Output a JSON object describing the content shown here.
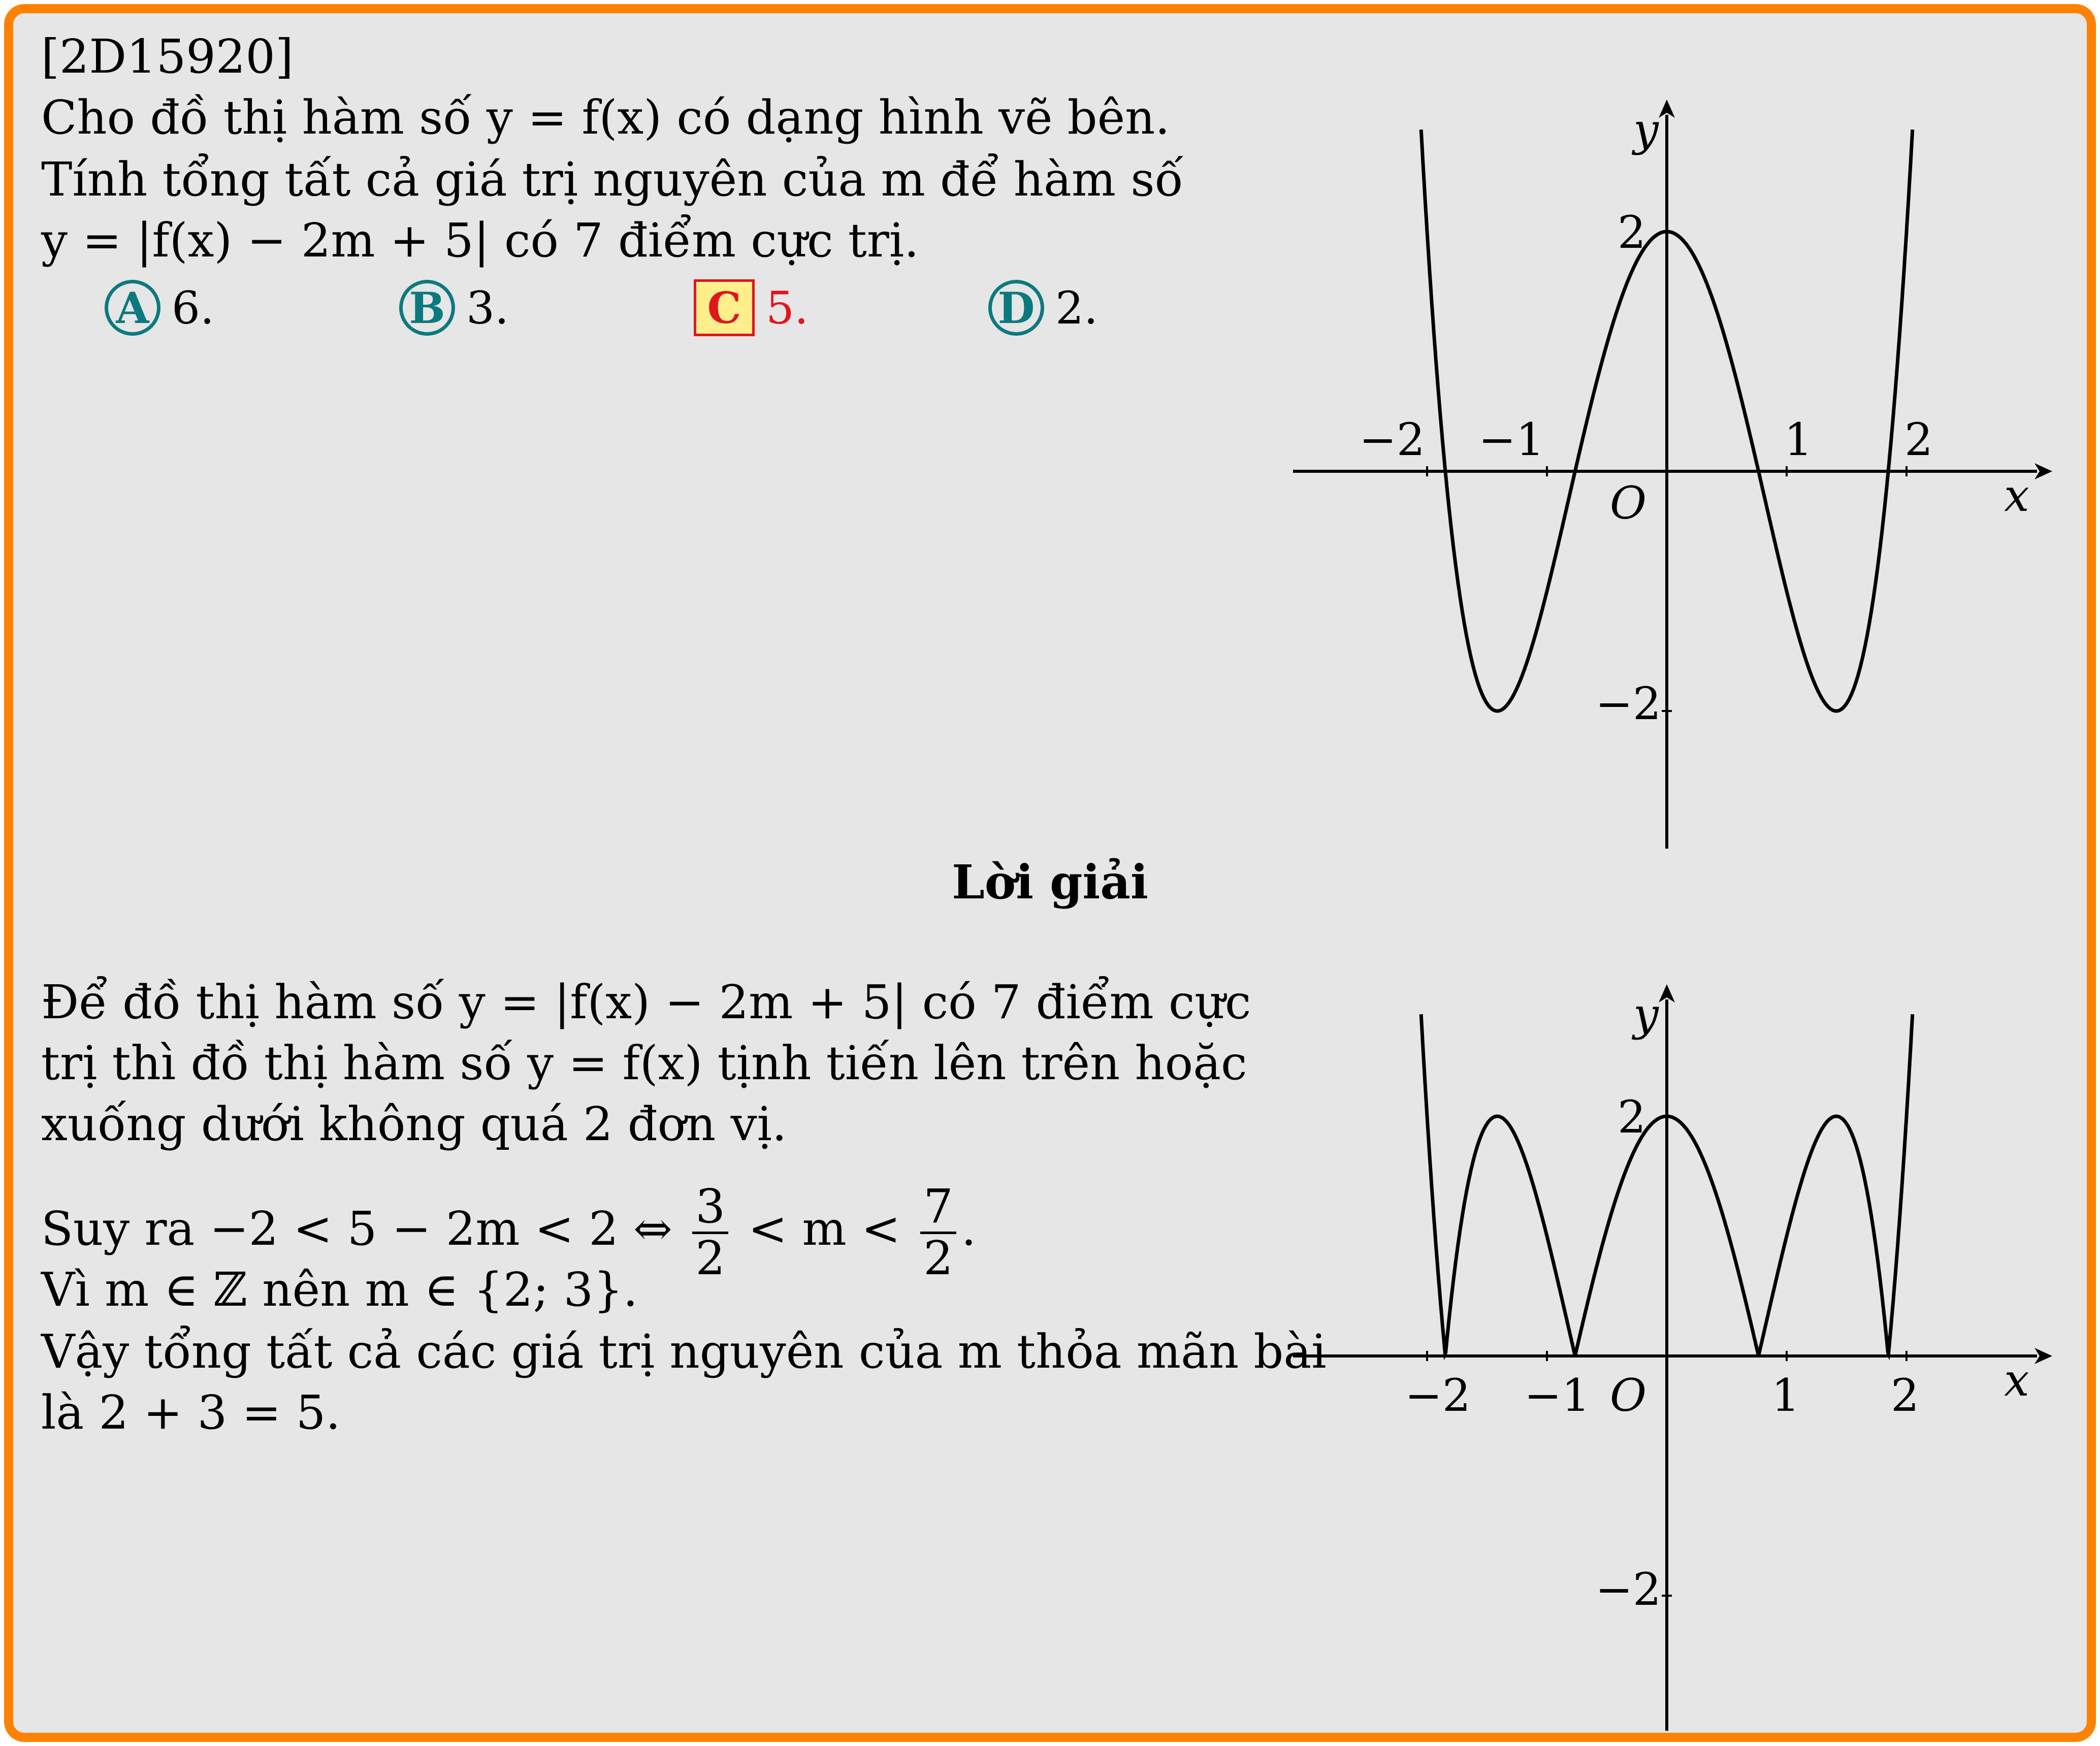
{
  "problem": {
    "id": "[2D15920]",
    "lines": [
      "Cho đồ thị hàm số y = f(x) có dạng hình vẽ bên.",
      "Tính tổng tất cả giá trị nguyên của m để hàm số",
      "y = |f(x) − 2m + 5| có 7 điểm cực trị."
    ]
  },
  "choices": [
    {
      "letter": "A",
      "value": "6.",
      "correct": false
    },
    {
      "letter": "B",
      "value": "3.",
      "correct": false
    },
    {
      "letter": "C",
      "value": "5.",
      "correct": true
    },
    {
      "letter": "D",
      "value": "2.",
      "correct": false
    }
  ],
  "colors": {
    "frame": "#ff8200",
    "background": "#e6e6e6",
    "choice": "#0a7a7e",
    "correct": "#e0151e",
    "correct_fill": "#fdf08a"
  },
  "solution": {
    "heading": "Lời giải",
    "line1": "Để đồ thị hàm số y = |f(x) − 2m + 5| có 7 điểm cực",
    "line2": "trị thì đồ thị hàm số y = f(x) tịnh tiến lên trên hoặc",
    "line3": "xuống dưới không quá 2 đơn vị.",
    "line4_prefix": "Suy ra −2 < 5 − 2m < 2 ⇔",
    "frac1": {
      "num": "3",
      "den": "2"
    },
    "line4_mid": "< m <",
    "frac2": {
      "num": "7",
      "den": "2"
    },
    "line4_end": ".",
    "line5": "Vì m ∈ ℤ nên m ∈ {2; 3}.",
    "line6": "Vậy tổng tất cả các giá trị nguyên của m thỏa mãn bài",
    "line7": "là 2 + 3 = 5."
  },
  "chart_data": [
    {
      "type": "line",
      "function": "y = f(x)",
      "xlabel": "x",
      "ylabel": "y",
      "origin_label": "O",
      "x_ticks": [
        "−2",
        "−1",
        "1",
        "2"
      ],
      "y_ticks": [
        "2",
        "−2"
      ],
      "xlim": [
        -3.1,
        3.1
      ],
      "ylim": [
        -3.1,
        3.0
      ],
      "series": [
        {
          "x": [
            -2.05,
            -1.88,
            -1.41,
            -0.77,
            0,
            0.77,
            1.41,
            1.88,
            2.05
          ],
          "y": [
            3.0,
            0,
            -2,
            0,
            2,
            0,
            -2,
            0,
            3.0
          ]
        }
      ]
    },
    {
      "type": "line",
      "function": "y = |f(x)|",
      "xlabel": "x",
      "ylabel": "y",
      "origin_label": "O",
      "x_ticks": [
        "−2",
        "−1",
        "1",
        "2"
      ],
      "y_ticks": [
        "2",
        "−2"
      ],
      "xlim": [
        -3.1,
        3.1
      ],
      "ylim": [
        -3.1,
        3.0
      ],
      "series": [
        {
          "x": [
            -2.05,
            -1.88,
            -1.41,
            -0.77,
            0,
            0.77,
            1.41,
            1.88,
            2.05
          ],
          "y": [
            3.0,
            0,
            2,
            0,
            2,
            0,
            2,
            0,
            3.0
          ]
        }
      ]
    }
  ]
}
